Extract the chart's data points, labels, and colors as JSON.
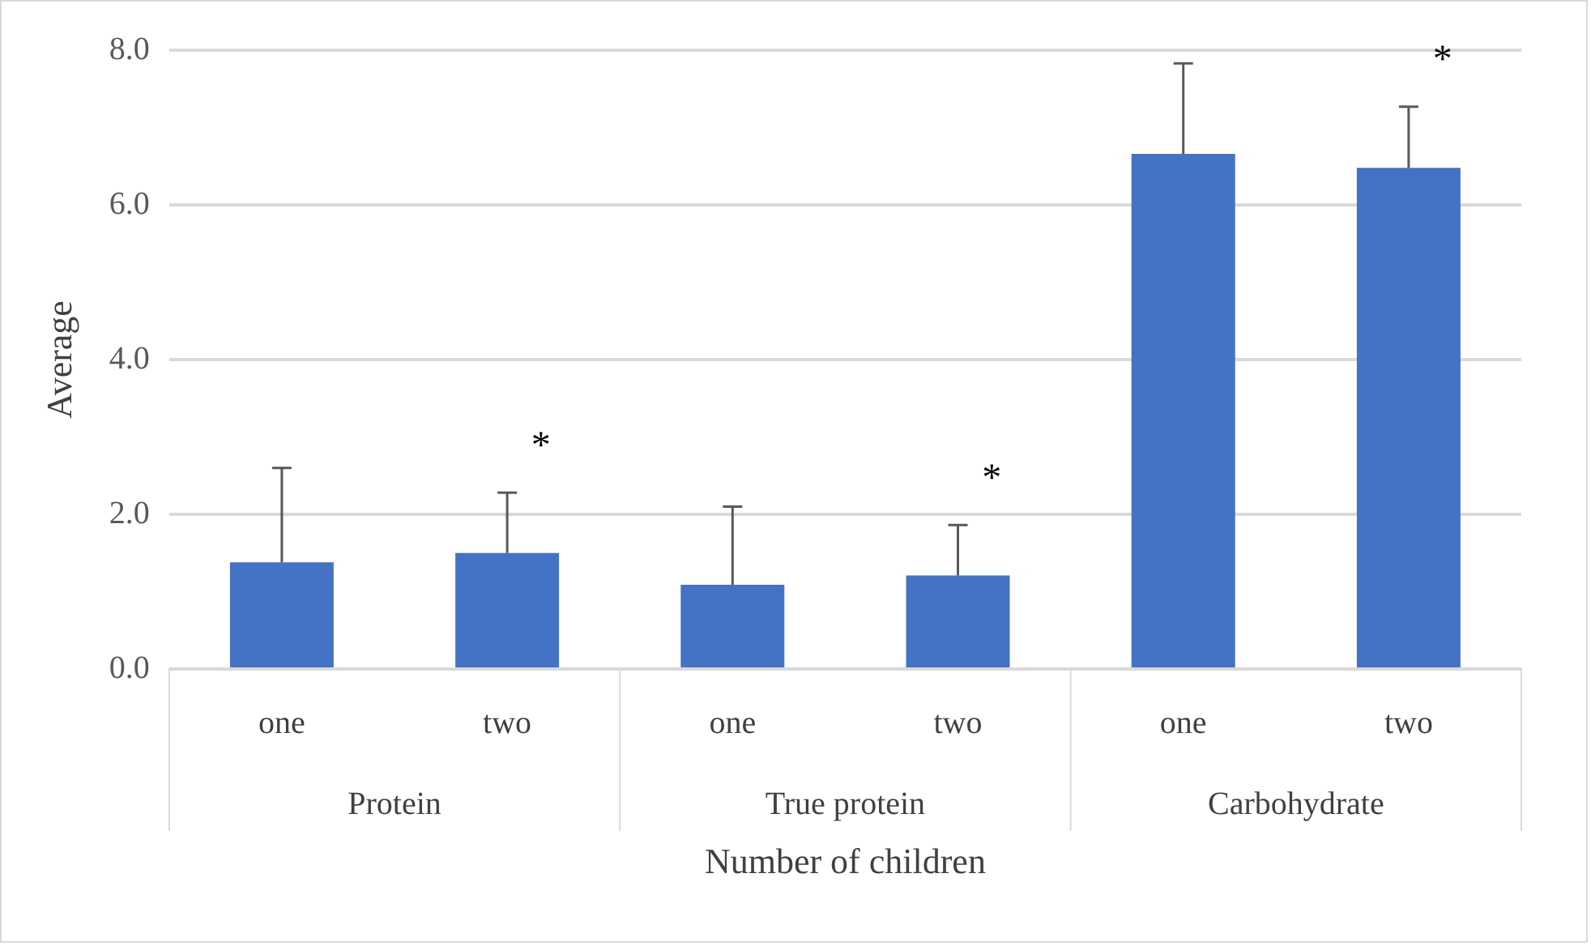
{
  "chart_data": {
    "type": "bar",
    "xlabel": "Number of children",
    "ylabel": "Average",
    "categories": [
      "one",
      "two",
      "one",
      "two",
      "one",
      "two"
    ],
    "values": [
      1.38,
      1.5,
      1.09,
      1.21,
      6.66,
      6.48
    ],
    "errors": [
      [
        1.38,
        2.6
      ],
      [
        1.5,
        2.28
      ],
      [
        1.09,
        2.1
      ],
      [
        1.21,
        1.86
      ],
      [
        6.66,
        7.83
      ],
      [
        6.48,
        7.27
      ]
    ],
    "value_labels": [
      null,
      "*",
      null,
      "*",
      null,
      "*"
    ],
    "color": "#4472c4",
    "ylim": [
      0,
      8
    ],
    "yticks": [
      {
        "value": 0,
        "label": "0.0"
      },
      {
        "value": 2,
        "label": "2.0"
      },
      {
        "value": 4,
        "label": "4.0"
      },
      {
        "value": 6,
        "label": "6.0"
      },
      {
        "value": 8,
        "label": "8.0"
      }
    ],
    "grid": "y",
    "annotations": [
      "Protein",
      "True protein",
      "Carbohydrate"
    ]
  }
}
